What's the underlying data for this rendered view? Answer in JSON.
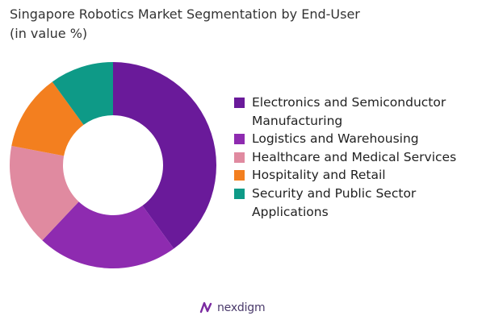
{
  "chart_data": {
    "type": "pie",
    "subtype": "donut",
    "title_line1": "Singapore Robotics Market Segmentation by End-User",
    "title_line2": "(in value %)",
    "series": [
      {
        "name": "Electronics and Semiconductor Manufacturing",
        "value": 40,
        "color": "#6a1a9a"
      },
      {
        "name": "Logistics and Warehousing",
        "value": 22,
        "color": "#8e2bb0"
      },
      {
        "name": "Healthcare and Medical Services",
        "value": 16,
        "color": "#e08aa0"
      },
      {
        "name": "Hospitality and Retail",
        "value": 12,
        "color": "#f37f1f"
      },
      {
        "name": "Security and Public Sector Applications",
        "value": 10,
        "color": "#0e9a87"
      }
    ],
    "legend_position": "right"
  },
  "logo": {
    "text": "nexdigm",
    "icon": "nexdigm-logo-icon"
  }
}
